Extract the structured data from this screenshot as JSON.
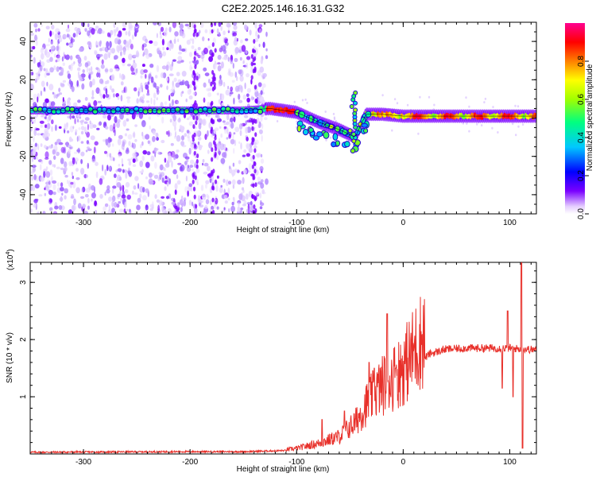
{
  "title": "C2E2.2025.146.16.31.G32",
  "chart_data": [
    {
      "type": "heatmap",
      "xlabel": "Height of straight line (km)",
      "ylabel": "Frequency (Hz)",
      "xlim": [
        -350,
        125
      ],
      "ylim": [
        -50,
        50
      ],
      "xticks": [
        -300,
        -200,
        -100,
        0,
        100
      ],
      "yticks": [
        -40,
        -20,
        0,
        20,
        40
      ],
      "colorbar": {
        "label": "Normalized spectral amplitude",
        "range": [
          0,
          1
        ],
        "ticks": [
          "0.0",
          "0.2",
          "0.4",
          "0.6",
          "0.8"
        ],
        "colormap": [
          "#ffffff",
          "#7a00ff",
          "#0000ff",
          "#00c8ff",
          "#00ff80",
          "#a0ff00",
          "#ffff00",
          "#ff8000",
          "#ff0000",
          "#ff0090"
        ]
      },
      "ridge": [
        {
          "x": -350,
          "f": 4
        },
        {
          "x": -300,
          "f": 4
        },
        {
          "x": -250,
          "f": 4
        },
        {
          "x": -200,
          "f": 4
        },
        {
          "x": -150,
          "f": 4
        },
        {
          "x": -125,
          "f": 5
        },
        {
          "x": -100,
          "f": 3
        },
        {
          "x": -80,
          "f": -2
        },
        {
          "x": -60,
          "f": -6
        },
        {
          "x": -45,
          "f": -10
        },
        {
          "x": -35,
          "f": 2
        },
        {
          "x": -20,
          "f": 2
        },
        {
          "x": 0,
          "f": 1
        },
        {
          "x": 50,
          "f": 1
        },
        {
          "x": 100,
          "f": 1
        },
        {
          "x": 125,
          "f": 1
        }
      ]
    },
    {
      "type": "line",
      "xlabel": "Height of straight line (km)",
      "ylabel": "SNR (10 * v/v)",
      "yscale_label": "(x10",
      "yscale_exp": "4",
      "yscale_close": ")",
      "xlim": [
        -350,
        125
      ],
      "ylim": [
        0,
        3.35
      ],
      "xticks": [
        -300,
        -200,
        -100,
        0,
        100
      ],
      "yticks": [
        1,
        2,
        3
      ],
      "color": "#e8302a",
      "profile": [
        {
          "x": -350,
          "y": 0.03
        },
        {
          "x": -200,
          "y": 0.04
        },
        {
          "x": -150,
          "y": 0.04
        },
        {
          "x": -110,
          "y": 0.06
        },
        {
          "x": -100,
          "y": 0.08
        },
        {
          "x": -80,
          "y": 0.15
        },
        {
          "x": -60,
          "y": 0.25
        },
        {
          "x": -45,
          "y": 0.45
        },
        {
          "x": -35,
          "y": 0.7
        },
        {
          "x": -25,
          "y": 0.9
        },
        {
          "x": -15,
          "y": 1.05
        },
        {
          "x": -5,
          "y": 1.15
        },
        {
          "x": 5,
          "y": 1.35
        },
        {
          "x": 15,
          "y": 1.6
        },
        {
          "x": 25,
          "y": 1.75
        },
        {
          "x": 40,
          "y": 1.83
        },
        {
          "x": 60,
          "y": 1.85
        },
        {
          "x": 80,
          "y": 1.85
        },
        {
          "x": 100,
          "y": 1.85
        },
        {
          "x": 125,
          "y": 1.82
        }
      ],
      "spikes": [
        {
          "x": -76,
          "y": 0.6
        },
        {
          "x": -55,
          "y": 0.75
        },
        {
          "x": -32,
          "y": 1.6
        },
        {
          "x": -27,
          "y": 1.5
        },
        {
          "x": -15,
          "y": 2.45
        },
        {
          "x": -7,
          "y": 1.5
        },
        {
          "x": 93,
          "y": 1.15
        },
        {
          "x": 98,
          "y": 2.5
        },
        {
          "x": 103,
          "y": 1.0
        },
        {
          "x": 111,
          "y": 3.35
        },
        {
          "x": 112,
          "y": 0.1
        }
      ]
    }
  ]
}
